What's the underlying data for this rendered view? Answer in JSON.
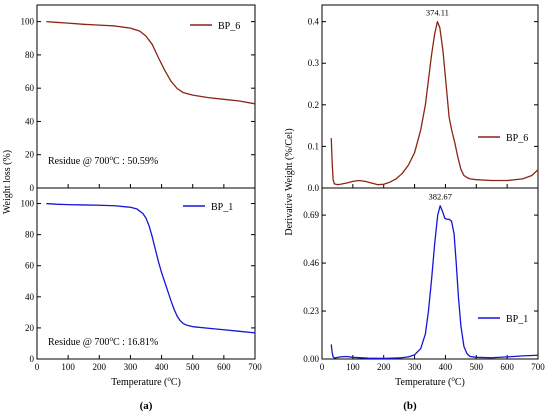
{
  "panel_labels": [
    "(a)",
    "(b)"
  ],
  "chart_data": [
    {
      "type": "line",
      "panel": "(a)",
      "subplot": "top",
      "xlabel": "Temperature (°C)",
      "ylabel": "Weight loss (%)",
      "xlim": [
        0,
        700
      ],
      "ylim": [
        0,
        110
      ],
      "yticks": [
        0,
        20,
        40,
        60,
        80,
        100
      ],
      "yticks_text": [
        "0",
        "20",
        "40",
        "60",
        "80",
        "100"
      ],
      "series": [
        {
          "name": "BP_6",
          "color": "#8B2515",
          "x": [
            30,
            60,
            100,
            150,
            200,
            250,
            300,
            330,
            350,
            370,
            390,
            410,
            430,
            450,
            470,
            500,
            550,
            600,
            650,
            700
          ],
          "y": [
            100,
            99.6,
            99.1,
            98.4,
            97.9,
            97.4,
            96.1,
            94.3,
            91.3,
            86.3,
            78.3,
            70.8,
            64.3,
            59.8,
            57.3,
            55.8,
            54.3,
            53.3,
            52.3,
            50.6
          ]
        }
      ],
      "annotation": "Residue @ 700°C : 50.59%"
    },
    {
      "type": "line",
      "panel": "(a)",
      "subplot": "bottom",
      "xlabel": "Temperature (°C)",
      "ylabel": "Weight loss (%)",
      "xlim": [
        0,
        700
      ],
      "ylim": [
        0,
        110
      ],
      "yticks": [
        0,
        20,
        40,
        60,
        80,
        100
      ],
      "yticks_text": [
        "0",
        "20",
        "40",
        "60",
        "80",
        "100"
      ],
      "xticks": [
        0,
        100,
        200,
        300,
        400,
        500,
        600,
        700
      ],
      "xticks_text": [
        "0",
        "100",
        "200",
        "300",
        "400",
        "500",
        "600",
        "700"
      ],
      "series": [
        {
          "name": "BP_1",
          "color": "#1515D9",
          "x": [
            30,
            60,
            100,
            150,
            200,
            250,
            300,
            320,
            340,
            350,
            360,
            370,
            380,
            390,
            400,
            410,
            420,
            430,
            440,
            450,
            460,
            470,
            480,
            500,
            550,
            600,
            650,
            700
          ],
          "y": [
            100,
            99.6,
            99.3,
            99.1,
            98.9,
            98.6,
            97.6,
            96.6,
            93.6,
            90.6,
            85.6,
            78.6,
            70.6,
            62.6,
            55.6,
            49.6,
            43.6,
            37.6,
            32.1,
            27.6,
            24.6,
            22.8,
            21.8,
            20.8,
            19.8,
            18.8,
            17.8,
            16.8
          ]
        }
      ],
      "annotation": "Residue @ 700°C : 16.81%"
    },
    {
      "type": "line",
      "panel": "(b)",
      "subplot": "top",
      "xlabel": "Temperature (°C)",
      "ylabel": "Derivative Weight (%/Cel)",
      "xlim": [
        0,
        700
      ],
      "ylim": [
        0,
        0.44
      ],
      "yticks": [
        0.0,
        0.1,
        0.2,
        0.3,
        0.4
      ],
      "yticks_text": [
        "0.0",
        "0.1",
        "0.2",
        "0.3",
        "0.4"
      ],
      "series": [
        {
          "name": "BP_6",
          "color": "#8B2515",
          "x": [
            30,
            33,
            36,
            40,
            50,
            60,
            80,
            100,
            120,
            140,
            160,
            180,
            200,
            220,
            240,
            260,
            280,
            300,
            320,
            335,
            345,
            355,
            365,
            374,
            382,
            392,
            402,
            412,
            420,
            430,
            440,
            450,
            460,
            470,
            480,
            500,
            550,
            600,
            650,
            680,
            700
          ],
          "y": [
            0.12,
            0.06,
            0.02,
            0.01,
            0.008,
            0.009,
            0.012,
            0.016,
            0.018,
            0.016,
            0.012,
            0.008,
            0.009,
            0.014,
            0.022,
            0.035,
            0.055,
            0.085,
            0.14,
            0.2,
            0.26,
            0.32,
            0.37,
            0.4,
            0.385,
            0.33,
            0.25,
            0.17,
            0.14,
            0.11,
            0.075,
            0.045,
            0.03,
            0.025,
            0.022,
            0.02,
            0.018,
            0.018,
            0.022,
            0.03,
            0.044
          ]
        }
      ],
      "peak_label": "374.11",
      "peak": {
        "x": 374,
        "y": 0.4
      }
    },
    {
      "type": "line",
      "panel": "(b)",
      "subplot": "bottom",
      "xlabel": "Temperature (°C)",
      "ylabel": "Derivative Weight (%/Cel)",
      "xlim": [
        0,
        700
      ],
      "ylim": [
        0,
        0.82
      ],
      "yticks": [
        0.0,
        0.23,
        0.46,
        0.69
      ],
      "yticks_text": [
        "0.00",
        "0.23",
        "0.46",
        "0.69"
      ],
      "xticks": [
        0,
        100,
        200,
        300,
        400,
        500,
        600,
        700
      ],
      "xticks_text": [
        "0",
        "100",
        "200",
        "300",
        "400",
        "500",
        "600",
        "700"
      ],
      "series": [
        {
          "name": "BP_1",
          "color": "#1515D9",
          "x": [
            30,
            33,
            36,
            40,
            60,
            80,
            100,
            150,
            200,
            250,
            280,
            300,
            320,
            335,
            345,
            355,
            365,
            375,
            383,
            390,
            398,
            405,
            412,
            420,
            428,
            435,
            442,
            450,
            460,
            470,
            480,
            500,
            550,
            600,
            650,
            700
          ],
          "y": [
            0.07,
            0.03,
            0.01,
            0.005,
            0.01,
            0.012,
            0.008,
            0.004,
            0.003,
            0.005,
            0.01,
            0.02,
            0.05,
            0.12,
            0.23,
            0.38,
            0.55,
            0.69,
            0.735,
            0.71,
            0.675,
            0.67,
            0.67,
            0.66,
            0.6,
            0.46,
            0.3,
            0.16,
            0.06,
            0.025,
            0.012,
            0.008,
            0.006,
            0.01,
            0.015,
            0.018
          ]
        }
      ],
      "peak_label": "382.67",
      "peak": {
        "x": 383,
        "y": 0.735
      }
    }
  ]
}
